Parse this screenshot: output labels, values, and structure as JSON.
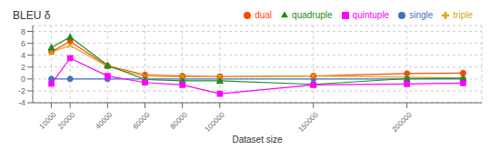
{
  "chart_data": {
    "type": "line",
    "title": "BLEU δ",
    "xlabel": "Dataset size",
    "x": [
      10000,
      20000,
      40000,
      60000,
      80000,
      100000,
      150000,
      200000,
      230000
    ],
    "series": [
      {
        "name": "single",
        "color": "#4472c4",
        "marker": "circle",
        "values": [
          0,
          0,
          0,
          0,
          0,
          0,
          0,
          0,
          0
        ]
      },
      {
        "name": "dual",
        "color": "#ff4500",
        "marker": "circle",
        "values": [
          4.6,
          6.3,
          2.2,
          0.7,
          0.5,
          0.4,
          0.5,
          0.9,
          1.0
        ]
      },
      {
        "name": "triple",
        "color": "#daa520",
        "marker": "x",
        "values": [
          4.5,
          5.65,
          2.1,
          0.4,
          0.4,
          0.4,
          0.5,
          0.3,
          0.15
        ]
      },
      {
        "name": "quadruple",
        "color": "#228b22",
        "marker": "triangle",
        "values": [
          5.3,
          7.05,
          2.3,
          -0.1,
          -0.3,
          -0.3,
          -0.9,
          0.05,
          0.1
        ]
      },
      {
        "name": "quintuple",
        "color": "#ff00ff",
        "marker": "square",
        "values": [
          -0.8,
          3.5,
          0.5,
          -0.6,
          -1.0,
          -2.5,
          -1.0,
          -0.85,
          -0.7
        ]
      }
    ],
    "xlim": [
      0,
      240000
    ],
    "xticks": [
      10000,
      20000,
      40000,
      60000,
      80000,
      100000,
      150000,
      200000
    ],
    "ylim": [
      -4,
      9
    ],
    "yticks": [
      -4,
      -2,
      0,
      2,
      4,
      6,
      8
    ],
    "grid": true,
    "legend": "upper right"
  }
}
